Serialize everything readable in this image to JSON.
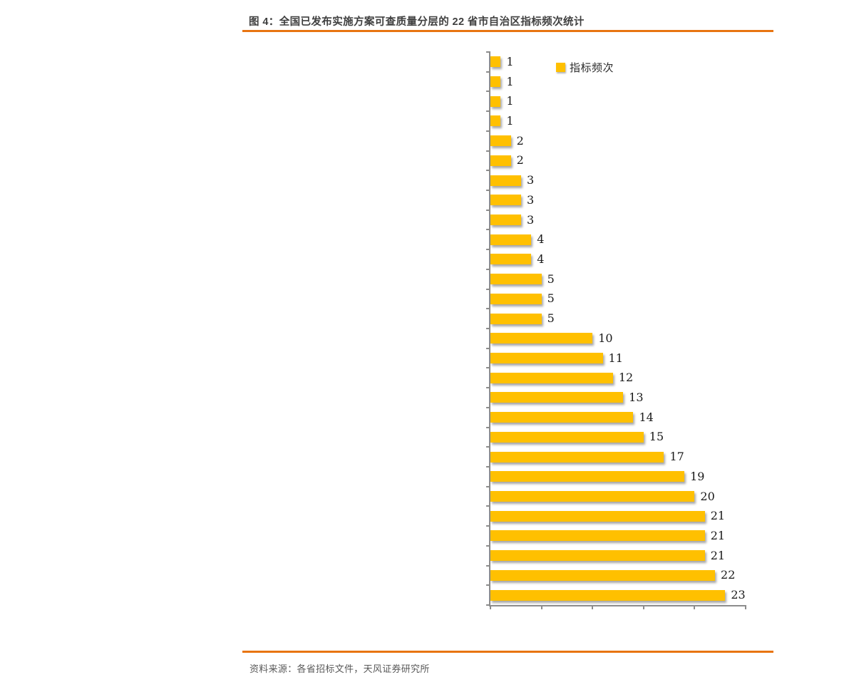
{
  "figure": {
    "title": "图 4：全国已发布实施方案可查质量分层的 22 省市自治区指标频次统计",
    "source": "资料来源：各省招标文件，天风证券研究所"
  },
  "colors": {
    "bar": "#FFC000",
    "divider": "#E87511",
    "axis": "#8C8C8C",
    "title_text": "#3F3F3F",
    "source_text": "#595959",
    "value_label_text": "#1A1A1A"
  },
  "chart_data": {
    "type": "bar",
    "orientation": "horizontal",
    "title": "",
    "legend": "指标频次",
    "legend_position": "top-inside",
    "values": [
      1,
      1,
      1,
      1,
      2,
      2,
      3,
      3,
      3,
      4,
      4,
      5,
      5,
      5,
      10,
      11,
      12,
      13,
      14,
      15,
      17,
      19,
      20,
      21,
      21,
      21,
      22,
      23
    ],
    "value_labels_shown": true,
    "xlim": [
      0,
      25
    ],
    "x_tick_step": 5,
    "x_tick_labels_shown": false,
    "category_labels_shown": false,
    "grid": false
  }
}
